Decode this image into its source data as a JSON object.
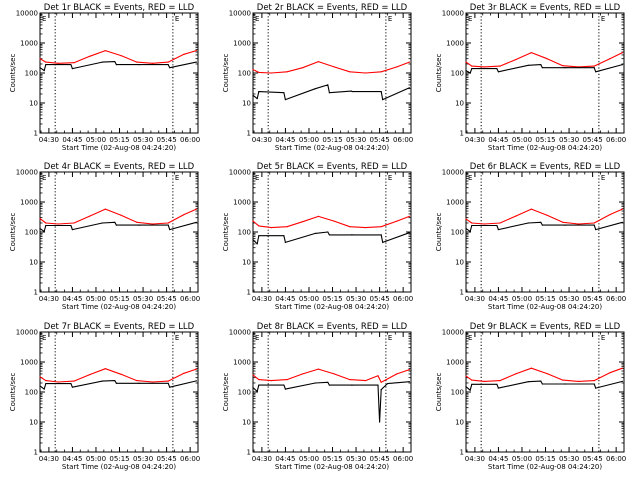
{
  "figure": {
    "x_tick_labels": [
      "04:30",
      "04:45",
      "05:00",
      "05:15",
      "05:30",
      "05:45",
      "06:00"
    ],
    "y_tick_labels": [
      "1",
      "10",
      "100",
      "1000",
      "10000"
    ],
    "xlabel": "Start Time (02-Aug-08 04:24:20)",
    "ylabel": "Counts/sec",
    "marker_label": "E",
    "colors": {
      "events": "#000000",
      "lld": "#ff0000",
      "axes": "#000000",
      "background": "#ffffff"
    }
  },
  "chart_data": [
    {
      "type": "line",
      "title": "Det 1r BLACK = Events, RED = LLD",
      "xlabel": "Start Time (02-Aug-08 04:24:20)",
      "ylabel": "Counts/sec",
      "yscale": "log",
      "ylim": [
        1,
        10000
      ],
      "xlim": [
        "04:24:20",
        "06:05:00"
      ],
      "x_ticks": [
        "04:30",
        "04:45",
        "05:00",
        "05:15",
        "05:30",
        "05:45",
        "06:00"
      ],
      "y_ticks": [
        "1",
        "10",
        "100",
        "1000",
        "10000"
      ],
      "markers": [
        "04:34",
        "05:49"
      ],
      "series": [
        {
          "x": [
            "04:24",
            "04:28",
            "04:36",
            "04:46",
            "04:56",
            "05:06",
            "05:16",
            "05:26",
            "05:36",
            "05:46",
            "05:56",
            "06:04"
          ],
          "values": [
            300,
            230,
            210,
            220,
            360,
            560,
            380,
            230,
            210,
            230,
            420,
            560
          ]
        },
        {
          "x": [
            "04:24",
            "04:27",
            "04:28",
            "04:44",
            "04:45",
            "05:04",
            "05:12",
            "05:13",
            "05:27",
            "05:28",
            "05:46",
            "05:47",
            "06:04"
          ],
          "values": [
            150,
            120,
            190,
            190,
            140,
            230,
            240,
            190,
            190,
            190,
            190,
            150,
            230
          ]
        }
      ]
    },
    {
      "type": "line",
      "title": "Det 2r BLACK = Events, RED = LLD",
      "xlabel": "Start Time (02-Aug-08 04:24:20)",
      "ylabel": "Counts/sec",
      "yscale": "log",
      "ylim": [
        1,
        10000
      ],
      "xlim": [
        "04:24:20",
        "06:05:00"
      ],
      "x_ticks": [
        "04:30",
        "04:45",
        "05:00",
        "05:15",
        "05:30",
        "05:45",
        "06:00"
      ],
      "y_ticks": [
        "1",
        "10",
        "100",
        "1000",
        "10000"
      ],
      "markers": [
        "04:34",
        "05:49"
      ],
      "series": [
        {
          "x": [
            "04:24",
            "04:28",
            "04:36",
            "04:46",
            "04:56",
            "05:06",
            "05:16",
            "05:26",
            "05:36",
            "05:46",
            "05:56",
            "06:04"
          ],
          "values": [
            130,
            105,
            100,
            110,
            150,
            240,
            160,
            110,
            100,
            110,
            160,
            230
          ]
        },
        {
          "x": [
            "04:24",
            "04:27",
            "04:28",
            "04:44",
            "04:45",
            "05:04",
            "05:12",
            "05:13",
            "05:27",
            "05:28",
            "05:46",
            "05:47",
            "06:04"
          ],
          "values": [
            18,
            14,
            24,
            22,
            13,
            30,
            40,
            22,
            25,
            24,
            24,
            13,
            32
          ]
        }
      ]
    },
    {
      "type": "line",
      "title": "Det 3r BLACK = Events, RED = LLD",
      "xlabel": "Start Time (02-Aug-08 04:24:20)",
      "ylabel": "Counts/sec",
      "yscale": "log",
      "ylim": [
        1,
        10000
      ],
      "xlim": [
        "04:24:20",
        "06:05:00"
      ],
      "x_ticks": [
        "04:30",
        "04:45",
        "05:00",
        "05:15",
        "05:30",
        "05:45",
        "06:00"
      ],
      "y_ticks": [
        "1",
        "10",
        "100",
        "1000",
        "10000"
      ],
      "markers": [
        "04:34",
        "05:49"
      ],
      "series": [
        {
          "x": [
            "04:24",
            "04:28",
            "04:36",
            "04:46",
            "04:56",
            "05:06",
            "05:16",
            "05:26",
            "05:36",
            "05:46",
            "05:56",
            "06:04"
          ],
          "values": [
            230,
            170,
            160,
            170,
            280,
            480,
            300,
            175,
            160,
            170,
            300,
            480
          ]
        },
        {
          "x": [
            "04:24",
            "04:27",
            "04:28",
            "04:44",
            "04:45",
            "05:04",
            "05:12",
            "05:13",
            "05:27",
            "05:28",
            "05:46",
            "05:47",
            "06:04"
          ],
          "values": [
            120,
            100,
            140,
            140,
            110,
            180,
            190,
            150,
            150,
            150,
            150,
            110,
            190
          ]
        }
      ]
    },
    {
      "type": "line",
      "title": "Det 4r BLACK = Events, RED = LLD",
      "xlabel": "Start Time (02-Aug-08 04:24:20)",
      "ylabel": "Counts/sec",
      "yscale": "log",
      "ylim": [
        1,
        10000
      ],
      "xlim": [
        "04:24:20",
        "06:05:00"
      ],
      "x_ticks": [
        "04:30",
        "04:45",
        "05:00",
        "05:15",
        "05:30",
        "05:45",
        "06:00"
      ],
      "y_ticks": [
        "1",
        "10",
        "100",
        "1000",
        "10000"
      ],
      "markers": [
        "04:34",
        "05:49"
      ],
      "series": [
        {
          "x": [
            "04:24",
            "04:28",
            "04:36",
            "04:46",
            "04:56",
            "05:06",
            "05:16",
            "05:26",
            "05:36",
            "05:46",
            "05:56",
            "06:04"
          ],
          "values": [
            280,
            200,
            185,
            200,
            340,
            580,
            360,
            210,
            185,
            200,
            380,
            580
          ]
        },
        {
          "x": [
            "04:24",
            "04:27",
            "04:28",
            "04:44",
            "04:45",
            "05:04",
            "05:12",
            "05:13",
            "05:27",
            "05:28",
            "05:46",
            "05:47",
            "06:04"
          ],
          "values": [
            130,
            105,
            165,
            165,
            120,
            200,
            210,
            170,
            170,
            170,
            170,
            120,
            210
          ]
        }
      ]
    },
    {
      "type": "line",
      "title": "Det 5r BLACK = Events, RED = LLD",
      "xlabel": "Start Time (02-Aug-08 04:24:20)",
      "ylabel": "Counts/sec",
      "yscale": "log",
      "ylim": [
        1,
        10000
      ],
      "xlim": [
        "04:24:20",
        "06:05:00"
      ],
      "x_ticks": [
        "04:30",
        "04:45",
        "05:00",
        "05:15",
        "05:30",
        "05:45",
        "06:00"
      ],
      "y_ticks": [
        "1",
        "10",
        "100",
        "1000",
        "10000"
      ],
      "markers": [
        "04:34",
        "05:49"
      ],
      "series": [
        {
          "x": [
            "04:24",
            "04:28",
            "04:36",
            "04:46",
            "04:56",
            "05:06",
            "05:16",
            "05:26",
            "05:36",
            "05:46",
            "05:56",
            "06:04"
          ],
          "values": [
            230,
            160,
            140,
            150,
            220,
            330,
            230,
            150,
            140,
            150,
            230,
            330
          ]
        },
        {
          "x": [
            "04:24",
            "04:27",
            "04:28",
            "04:44",
            "04:45",
            "05:04",
            "05:12",
            "05:13",
            "05:27",
            "05:28",
            "05:46",
            "05:47",
            "06:04"
          ],
          "values": [
            55,
            40,
            75,
            75,
            45,
            90,
            100,
            80,
            80,
            80,
            80,
            45,
            95
          ]
        }
      ]
    },
    {
      "type": "line",
      "title": "Det 6r BLACK = Events, RED = LLD",
      "xlabel": "Start Time (02-Aug-08 04:24:20)",
      "ylabel": "Counts/sec",
      "yscale": "log",
      "ylim": [
        1,
        10000
      ],
      "xlim": [
        "04:24:20",
        "06:05:00"
      ],
      "x_ticks": [
        "04:30",
        "04:45",
        "05:00",
        "05:15",
        "05:30",
        "05:45",
        "06:00"
      ],
      "y_ticks": [
        "1",
        "10",
        "100",
        "1000",
        "10000"
      ],
      "markers": [
        "04:34",
        "05:49"
      ],
      "series": [
        {
          "x": [
            "04:24",
            "04:28",
            "04:36",
            "04:46",
            "04:56",
            "05:06",
            "05:16",
            "05:26",
            "05:36",
            "05:46",
            "05:56",
            "06:04"
          ],
          "values": [
            270,
            200,
            185,
            200,
            340,
            580,
            360,
            210,
            185,
            200,
            380,
            580
          ]
        },
        {
          "x": [
            "04:24",
            "04:27",
            "04:28",
            "04:44",
            "04:45",
            "05:04",
            "05:12",
            "05:13",
            "05:27",
            "05:28",
            "05:46",
            "05:47",
            "06:04"
          ],
          "values": [
            130,
            105,
            165,
            165,
            120,
            200,
            210,
            170,
            170,
            170,
            170,
            120,
            210
          ]
        }
      ]
    },
    {
      "type": "line",
      "title": "Det 7r BLACK = Events, RED = LLD",
      "xlabel": "Start Time (02-Aug-08 04:24:20)",
      "ylabel": "Counts/sec",
      "yscale": "log",
      "ylim": [
        1,
        10000
      ],
      "xlim": [
        "04:24:20",
        "06:05:00"
      ],
      "x_ticks": [
        "04:30",
        "04:45",
        "05:00",
        "05:15",
        "05:30",
        "05:45",
        "06:00"
      ],
      "y_ticks": [
        "1",
        "10",
        "100",
        "1000",
        "10000"
      ],
      "markers": [
        "04:34",
        "05:49"
      ],
      "series": [
        {
          "x": [
            "04:24",
            "04:28",
            "04:36",
            "04:46",
            "04:56",
            "05:06",
            "05:16",
            "05:26",
            "05:36",
            "05:46",
            "05:56",
            "06:04"
          ],
          "values": [
            320,
            240,
            215,
            230,
            380,
            600,
            390,
            240,
            215,
            230,
            420,
            580
          ]
        },
        {
          "x": [
            "04:24",
            "04:27",
            "04:28",
            "04:44",
            "04:45",
            "05:04",
            "05:12",
            "05:13",
            "05:27",
            "05:28",
            "05:46",
            "05:47",
            "06:04"
          ],
          "values": [
            160,
            125,
            190,
            190,
            145,
            230,
            240,
            195,
            195,
            195,
            195,
            145,
            235
          ]
        }
      ]
    },
    {
      "type": "line",
      "title": "Det 8r BLACK = Events, RED = LLD",
      "xlabel": "Start Time (02-Aug-08 04:24:20)",
      "ylabel": "Counts/sec",
      "yscale": "log",
      "ylim": [
        1,
        10000
      ],
      "xlim": [
        "04:24:20",
        "06:05:00"
      ],
      "x_ticks": [
        "04:30",
        "04:45",
        "05:00",
        "05:15",
        "05:30",
        "05:45",
        "06:00"
      ],
      "y_ticks": [
        "1",
        "10",
        "100",
        "1000",
        "10000"
      ],
      "markers": [
        "04:34",
        "05:49"
      ],
      "series": [
        {
          "x": [
            "04:24",
            "04:28",
            "04:36",
            "04:46",
            "04:56",
            "05:06",
            "05:16",
            "05:26",
            "05:36",
            "05:44",
            "05:46",
            "05:56",
            "06:04"
          ],
          "values": [
            370,
            260,
            240,
            260,
            400,
            580,
            400,
            260,
            240,
            350,
            210,
            400,
            560
          ]
        },
        {
          "x": [
            "04:24",
            "04:27",
            "04:28",
            "04:44",
            "04:45",
            "05:04",
            "05:12",
            "05:13",
            "05:27",
            "05:28",
            "05:44",
            "05:45",
            "05:46",
            "05:50",
            "06:04"
          ],
          "values": [
            140,
            105,
            170,
            170,
            125,
            200,
            210,
            170,
            170,
            170,
            170,
            10,
            120,
            190,
            220
          ]
        }
      ]
    },
    {
      "type": "line",
      "title": "Det 9r BLACK = Events, RED = LLD",
      "xlabel": "Start Time (02-Aug-08 04:24:20)",
      "ylabel": "Counts/sec",
      "yscale": "log",
      "ylim": [
        1,
        10000
      ],
      "xlim": [
        "04:24:20",
        "06:05:00"
      ],
      "x_ticks": [
        "04:30",
        "04:45",
        "05:00",
        "05:15",
        "05:30",
        "05:45",
        "06:00"
      ],
      "y_ticks": [
        "1",
        "10",
        "100",
        "1000",
        "10000"
      ],
      "markers": [
        "04:34",
        "05:49"
      ],
      "series": [
        {
          "x": [
            "04:24",
            "04:28",
            "04:36",
            "04:46",
            "04:56",
            "05:06",
            "05:16",
            "05:26",
            "05:36",
            "05:46",
            "05:56",
            "06:04"
          ],
          "values": [
            340,
            250,
            225,
            240,
            400,
            620,
            410,
            250,
            225,
            240,
            440,
            620
          ]
        },
        {
          "x": [
            "04:24",
            "04:27",
            "04:28",
            "04:44",
            "04:45",
            "05:04",
            "05:12",
            "05:13",
            "05:27",
            "05:28",
            "05:46",
            "05:47",
            "06:04"
          ],
          "values": [
            150,
            115,
            180,
            180,
            135,
            220,
            230,
            185,
            185,
            185,
            185,
            135,
            225
          ]
        }
      ]
    }
  ]
}
